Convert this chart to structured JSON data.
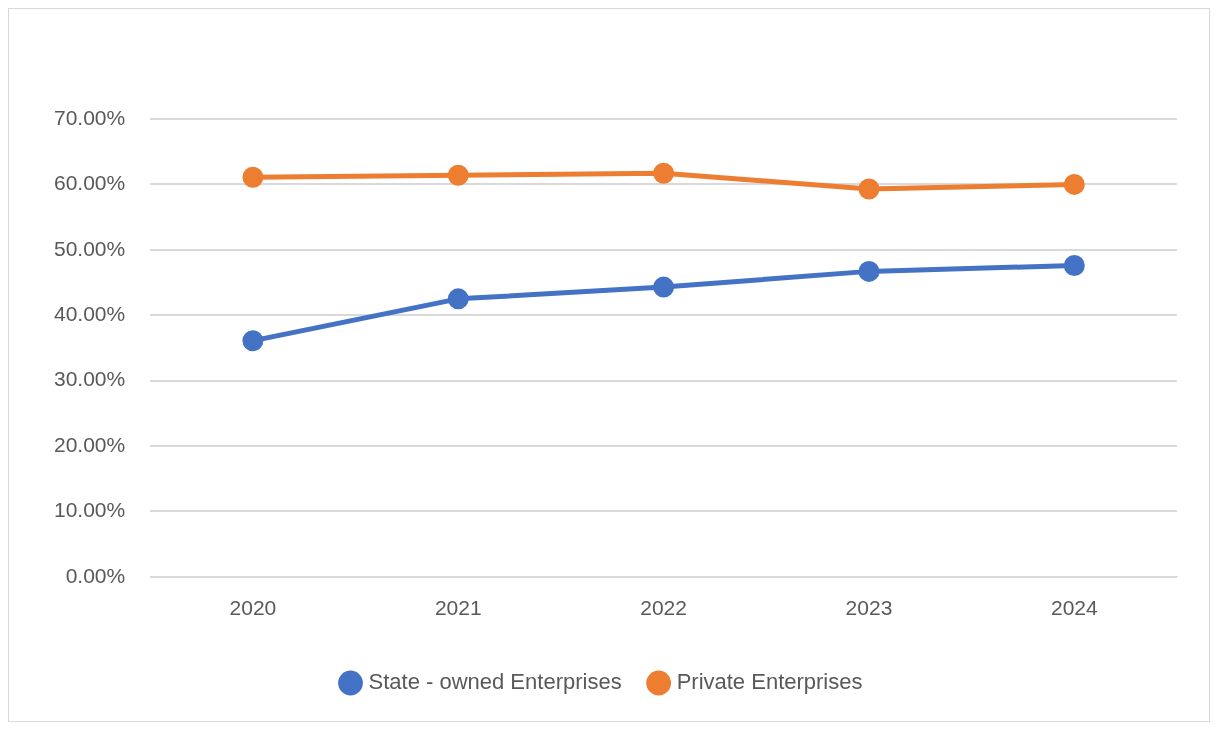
{
  "chart_data": {
    "type": "line",
    "categories": [
      "2020",
      "2021",
      "2022",
      "2023",
      "2024"
    ],
    "series": [
      {
        "name": "State - owned Enterprises",
        "color": "#4472c4",
        "values": [
          36.1,
          42.5,
          44.3,
          46.7,
          47.6
        ]
      },
      {
        "name": "Private Enterprises",
        "color": "#ed7d31",
        "values": [
          61.1,
          61.4,
          61.7,
          59.3,
          60.0
        ]
      }
    ],
    "ylim": [
      0,
      70
    ],
    "yticks": [
      {
        "value": 0,
        "label": "0.00%"
      },
      {
        "value": 10,
        "label": "10.00%"
      },
      {
        "value": 20,
        "label": "20.00%"
      },
      {
        "value": 30,
        "label": "30.00%"
      },
      {
        "value": 40,
        "label": "40.00%"
      },
      {
        "value": 50,
        "label": "50.00%"
      },
      {
        "value": 60,
        "label": "60.00%"
      },
      {
        "value": 70,
        "label": "70.00%"
      }
    ],
    "grid": "y",
    "legend": "bottom",
    "marker": "circle",
    "line_style": "solid"
  }
}
